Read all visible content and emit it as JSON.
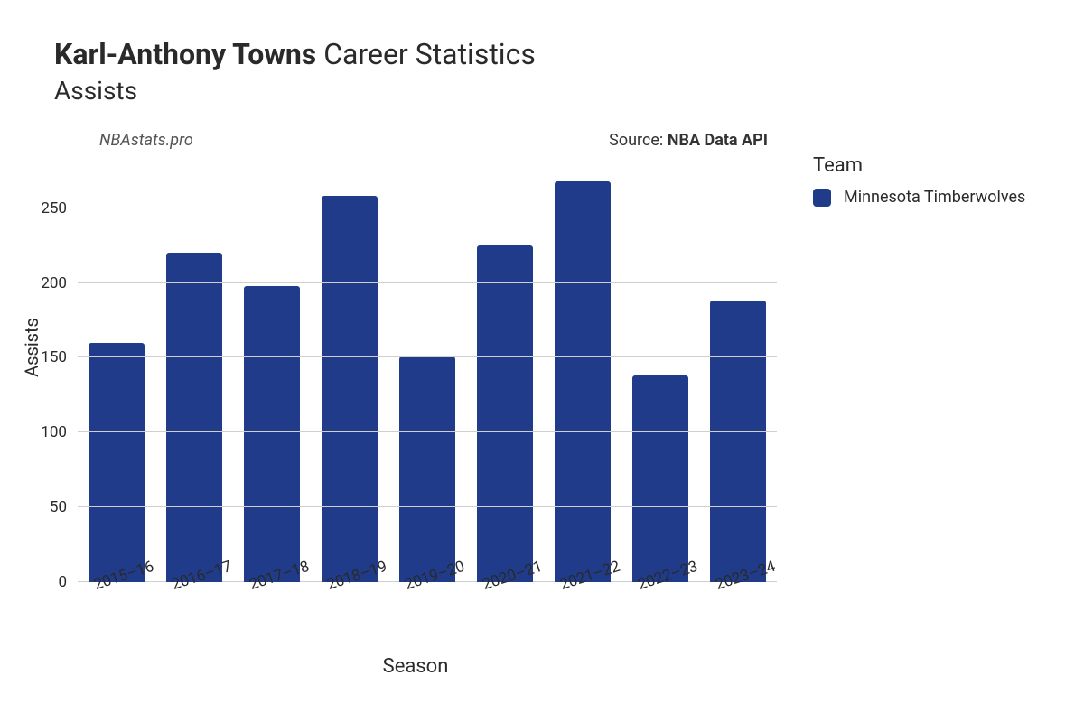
{
  "title": {
    "player_name": "Karl-Anthony Towns",
    "suffix": "Career Statistics",
    "subtitle": "Assists"
  },
  "annotations": {
    "watermark": "NBAstats.pro",
    "source_prefix": "Source: ",
    "source_name": "NBA Data API"
  },
  "axes": {
    "x_label": "Season",
    "y_label": "Assists"
  },
  "legend": {
    "title": "Team",
    "items": [
      {
        "label": "Minnesota Timberwolves",
        "color": "#1f3b8a"
      }
    ]
  },
  "chart": {
    "type": "bar",
    "categories": [
      "2015–16",
      "2016–17",
      "2017–18",
      "2018–19",
      "2019–20",
      "2020–21",
      "2021–22",
      "2022–23",
      "2023–24"
    ],
    "values": [
      160,
      220,
      198,
      258,
      151,
      225,
      268,
      138,
      188
    ],
    "bar_color": "#1f3b8a",
    "bar_width_pct": 72,
    "bar_border_radius": 3,
    "background_color": "#ffffff",
    "grid_color": "#cfcfcf",
    "y": {
      "min": 0,
      "max": 280,
      "ticks": [
        0,
        50,
        100,
        150,
        200,
        250
      ],
      "show_grid_for": [
        50,
        100,
        150,
        200,
        250
      ]
    },
    "tick_fontsize": 17,
    "axis_label_fontsize": 20,
    "title_fontsize": 32,
    "subtitle_fontsize": 28,
    "x_tick_rotation_deg": -18
  }
}
